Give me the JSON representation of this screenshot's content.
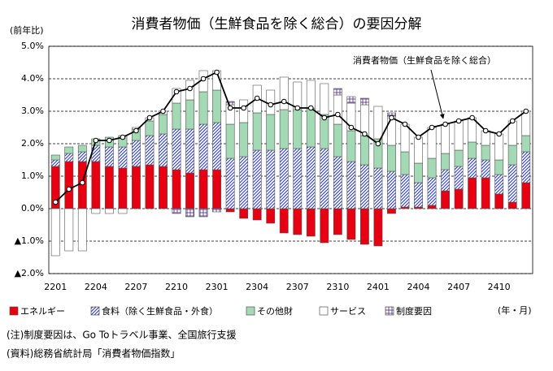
{
  "chart_data": {
    "type": "stacked-bar-line",
    "title": "消費者物価（生鮮食品を除く総合）の要因分解",
    "y_label": "(前年比)",
    "x_label": "(年・月)",
    "annotation": "消費者物価（生鮮食品を除く総合）",
    "notes": [
      "(注)制度要因は、Go Toトラベル事業、全国旅行支援",
      "(資料)総務省統計局「消費者物価指数」"
    ],
    "categories": [
      "2201",
      null,
      null,
      "2204",
      null,
      null,
      "2207",
      null,
      null,
      "2210",
      null,
      null,
      "2301",
      null,
      null,
      "2304",
      null,
      null,
      "2307",
      null,
      null,
      "2310",
      null,
      null,
      "2401",
      null,
      null,
      "2404",
      null,
      null,
      "2407",
      null,
      null,
      "2410",
      null,
      null
    ],
    "ylim": [
      -2,
      5
    ],
    "yticks": [
      {
        "value": 5,
        "label": "5.0%"
      },
      {
        "value": 4,
        "label": "4.0%"
      },
      {
        "value": 3,
        "label": "3.0%"
      },
      {
        "value": 2,
        "label": "2.0%"
      },
      {
        "value": 1,
        "label": "1.0%"
      },
      {
        "value": 0,
        "label": "0.0%"
      },
      {
        "value": -1,
        "label": "▲1.0%"
      },
      {
        "value": -2,
        "label": "▲2.0%"
      }
    ],
    "grid": true,
    "series": [
      {
        "name": "エネルギー",
        "color": "#e60012",
        "hatch": "none",
        "values": [
          1.3,
          1.45,
          1.45,
          1.45,
          1.3,
          1.25,
          1.3,
          1.35,
          1.3,
          1.2,
          1.1,
          1.2,
          1.2,
          -0.1,
          -0.3,
          -0.35,
          -0.45,
          -0.75,
          -0.8,
          -0.85,
          -1.05,
          -0.8,
          -0.95,
          -1.1,
          -1.15,
          -0.15,
          0.05,
          0.05,
          0.1,
          0.55,
          0.6,
          0.95,
          0.95,
          0.45,
          0.2,
          0.8
        ]
      },
      {
        "name": "食料（除く生鮮食品・外食）",
        "color": "#2f3fa8",
        "hatch": "diagonal",
        "values": [
          0.2,
          0.25,
          0.3,
          0.5,
          0.6,
          0.65,
          0.8,
          0.9,
          1.0,
          1.25,
          1.35,
          1.4,
          1.45,
          1.55,
          1.6,
          1.8,
          1.8,
          1.85,
          1.85,
          1.9,
          1.85,
          1.6,
          1.45,
          1.35,
          1.25,
          1.15,
          1.0,
          0.75,
          0.85,
          0.65,
          0.7,
          0.6,
          0.55,
          0.6,
          1.15,
          0.95
        ]
      },
      {
        "name": "その他財",
        "color": "#a3d9b5",
        "hatch": "none",
        "values": [
          0.15,
          0.2,
          0.2,
          0.2,
          0.3,
          0.35,
          0.35,
          0.45,
          0.6,
          0.8,
          0.9,
          1.0,
          1.0,
          1.05,
          1.05,
          1.15,
          1.1,
          1.2,
          1.2,
          1.2,
          1.05,
          1.0,
          0.95,
          0.9,
          0.9,
          0.8,
          0.7,
          0.6,
          0.6,
          0.5,
          0.5,
          0.5,
          0.45,
          0.45,
          0.6,
          0.5
        ]
      },
      {
        "name": "サービス",
        "color": "#ffffff",
        "hatch": "none",
        "values": [
          -1.45,
          -1.3,
          -1.3,
          -0.15,
          -0.15,
          -0.15,
          0.05,
          0.1,
          0.1,
          0.45,
          0.6,
          0.65,
          0.6,
          0.6,
          0.7,
          0.85,
          0.75,
          1.0,
          0.85,
          0.85,
          0.95,
          0.9,
          0.85,
          0.95,
          1.0,
          0.9,
          0.85,
          0.8,
          0.95,
          0.9,
          0.9,
          0.75,
          0.45,
          0.8,
          0.75,
          0.75
        ]
      },
      {
        "name": "制度要因",
        "color": "#6a4c9c",
        "hatch": "grid",
        "values": [
          0,
          0,
          0,
          0,
          0,
          0,
          0,
          0,
          0,
          -0.15,
          -0.25,
          -0.25,
          -0.1,
          0.1,
          0,
          0,
          0,
          0,
          0,
          0,
          0,
          0.2,
          0.2,
          0.2,
          0,
          0.1,
          0,
          0,
          0,
          0,
          0,
          0,
          0,
          0,
          0,
          0
        ]
      }
    ],
    "line": {
      "name": "消費者物価（生鮮食品を除く総合）",
      "color": "#000000",
      "values": [
        0.2,
        0.6,
        0.8,
        2.1,
        2.1,
        2.2,
        2.4,
        2.8,
        3.0,
        3.6,
        3.7,
        4.0,
        4.2,
        3.1,
        3.1,
        3.4,
        3.2,
        3.3,
        3.1,
        3.1,
        2.8,
        2.9,
        2.5,
        2.3,
        2.0,
        2.8,
        2.6,
        2.2,
        2.5,
        2.6,
        2.7,
        2.8,
        2.4,
        2.3,
        2.7,
        3.0
      ]
    }
  }
}
